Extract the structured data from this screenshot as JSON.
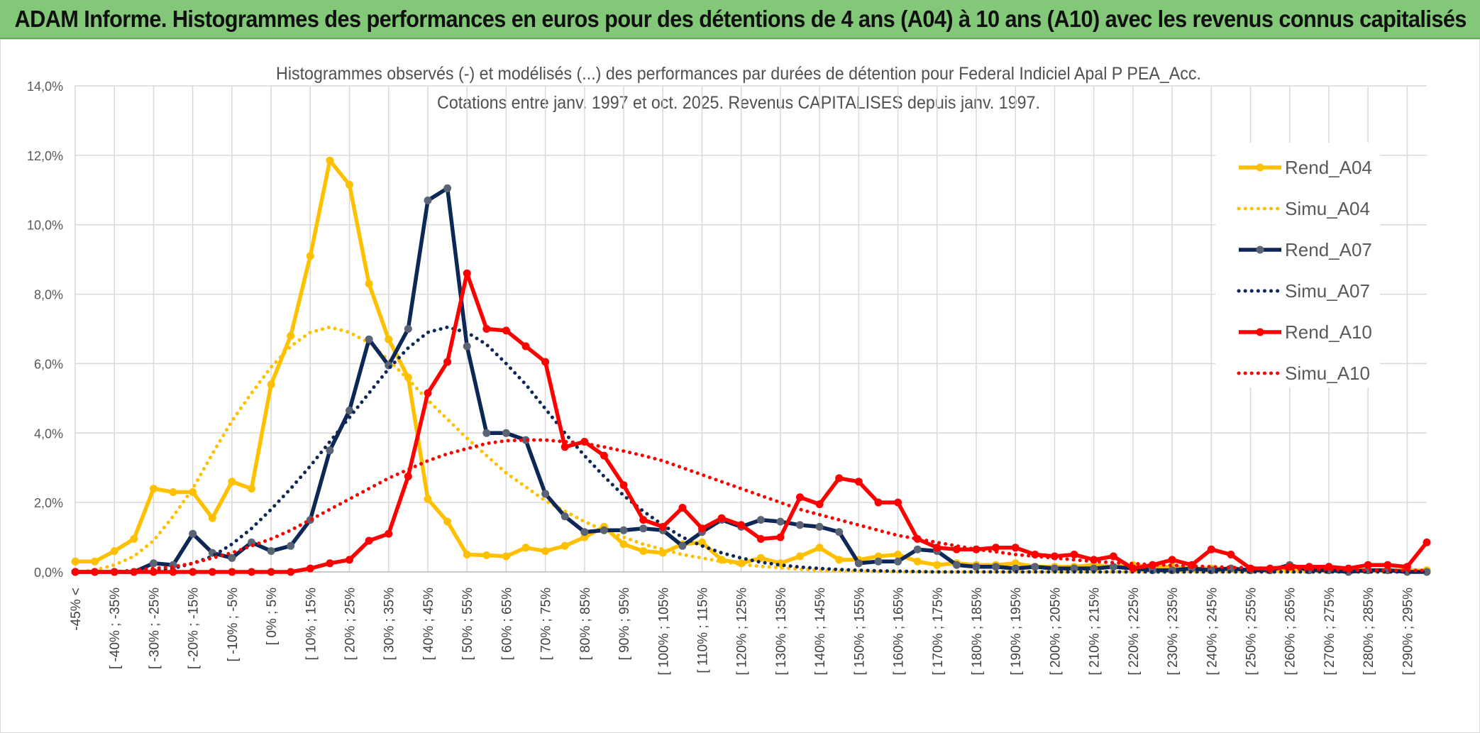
{
  "header": {
    "title": "ADAM Informe. Histogrammes des performances en euros pour des détentions de 4 ans (A04) à 10 ans (A10) avec les revenus connus capitalisés"
  },
  "chart_data": {
    "type": "line",
    "title": "Histogrammes observés (-) et modélisés (...) des performances par durées de détention pour Federal Indiciel Apal P PEA_Acc.",
    "subtitle": "Cotations entre janv. 1997 et oct. 2025. Revenus CAPITALISES depuis janv. 1997.",
    "xlabel": "",
    "ylabel": "",
    "ylim": [
      0,
      14
    ],
    "yticks": [
      "0,0%",
      "2,0%",
      "4,0%",
      "6,0%",
      "8,0%",
      "10,0%",
      "12,0%",
      "14,0%"
    ],
    "grid": true,
    "legend_position": "right",
    "categories": [
      "-45% <",
      "[ -45% ; -40%",
      "[ -40% ; -35%",
      "[ -35% ; -30%",
      "[ -30% ; -25%",
      "[ -25% ; -20%",
      "[ -20% ; -15%",
      "[ -15% ; -10%",
      "[ -10% ; -5%",
      "[ -5% ; 0%",
      "[ 0% ; 5%",
      "[ 5% ; 10%",
      "[ 10% ; 15%",
      "[ 15% ; 20%",
      "[ 20% ; 25%",
      "[ 25% ; 30%",
      "[ 30% ; 35%",
      "[ 35% ; 40%",
      "[ 40% ; 45%",
      "[ 45% ; 50%",
      "[ 50% ; 55%",
      "[ 55% ; 60%",
      "[ 60% ; 65%",
      "[ 65% ; 70%",
      "[ 70% ; 75%",
      "[ 75% ; 80%",
      "[ 80% ; 85%",
      "[ 85% ; 90%",
      "[ 90% ; 95%",
      "[ 95% ; 100%",
      "[ 100% ; 105%",
      "[ 105% ; 110%",
      "[ 110% ; 115%",
      "[ 115% ; 120%",
      "[ 120% ; 125%",
      "[ 125% ; 130%",
      "[ 130% ; 135%",
      "[ 135% ; 140%",
      "[ 140% ; 145%",
      "[ 145% ; 150%",
      "[ 150% ; 155%",
      "[ 155% ; 160%",
      "[ 160% ; 165%",
      "[ 165% ; 170%",
      "[ 170% ; 175%",
      "[ 175% ; 180%",
      "[ 180% ; 185%",
      "[ 185% ; 190%",
      "[ 190% ; 195%",
      "[ 195% ; 200%",
      "[ 200% ; 205%",
      "[ 205% ; 210%",
      "[ 210% ; 215%",
      "[ 215% ; 220%",
      "[ 220% ; 225%",
      "[ 225% ; 230%",
      "[ 230% ; 235%",
      "[ 235% ; 240%",
      "[ 240% ; 245%",
      "[ 245% ; 250%",
      "[ 250% ; 255%",
      "[ 255% ; 260%",
      "[ 260% ; 265%",
      "[ 265% ; 270%",
      "[ 270% ; 275%",
      "[ 275% ; 280%",
      "[ 280% ; 285%",
      "[ 285% ; 290%",
      "[ 290% ; 295%",
      "[ 295% ; 300%"
    ],
    "visible_category_labels": [
      "-45% <",
      "[ -40% ; -35%",
      "[ -30% ; -25%",
      "[ -20% ; -15%",
      "[ -10% ; -5%",
      "[ 0% ; 5%",
      "[ 10% ; 15%",
      "[ 20% ; 25%",
      "[ 30% ; 35%",
      "[ 40% ; 45%",
      "[ 50% ; 55%",
      "[ 60% ; 65%",
      "[ 70% ; 75%",
      "[ 80% ; 85%",
      "[ 90% ; 95%",
      "[ 100% ; 105%",
      "[ 110% ; 115%",
      "[ 120% ; 125%",
      "[ 130% ; 135%",
      "[ 140% ; 145%",
      "[ 150% ; 155%",
      "[ 160% ; 165%",
      "[ 170% ; 175%",
      "[ 180% ; 185%",
      "[ 190% ; 195%",
      "[ 200% ; 205%",
      "[ 210% ; 215%",
      "[ 220% ; 225%",
      "[ 230% ; 235%",
      "[ 240% ; 245%",
      "[ 250% ; 255%",
      "[ 260% ; 265%",
      "[ 270% ; 275%",
      "[ 280% ; 285%",
      "[ 290% ; 295%"
    ],
    "series": [
      {
        "name": "Rend_A04",
        "style": "solid",
        "markers": true,
        "color": "#ffc000",
        "values": [
          0.3,
          0.3,
          0.6,
          0.95,
          2.4,
          2.3,
          2.3,
          1.55,
          2.6,
          2.4,
          5.4,
          6.8,
          9.1,
          11.85,
          11.15,
          8.3,
          6.7,
          5.6,
          2.1,
          1.45,
          0.5,
          0.48,
          0.45,
          0.7,
          0.6,
          0.75,
          1.0,
          1.3,
          0.8,
          0.6,
          0.55,
          0.8,
          0.85,
          0.35,
          0.25,
          0.4,
          0.25,
          0.45,
          0.7,
          0.35,
          0.35,
          0.45,
          0.5,
          0.3,
          0.2,
          0.25,
          0.2,
          0.2,
          0.25,
          0.15,
          0.15,
          0.15,
          0.2,
          0.15,
          0.2,
          0.15,
          0.15,
          0.1,
          0.1,
          0.1,
          0.05,
          0.05,
          0.1,
          0.05,
          0.05,
          0.05,
          0.05,
          0.05,
          0.05,
          0.05
        ]
      },
      {
        "name": "Simu_A04",
        "style": "dotted",
        "markers": false,
        "color": "#ffc000",
        "values": [
          0.0,
          0.05,
          0.2,
          0.45,
          0.9,
          1.6,
          2.4,
          3.4,
          4.35,
          5.15,
          5.9,
          6.5,
          6.9,
          7.05,
          6.9,
          6.6,
          6.1,
          5.55,
          4.95,
          4.4,
          3.85,
          3.35,
          2.85,
          2.45,
          2.05,
          1.75,
          1.45,
          1.2,
          1.0,
          0.8,
          0.65,
          0.5,
          0.4,
          0.3,
          0.22,
          0.16,
          0.12,
          0.08,
          0.05,
          0.03,
          0.02,
          0.01,
          0.0,
          0.0,
          0.0,
          0.0,
          0.0,
          0.0,
          0.0,
          0.0,
          0.0,
          0.0,
          0.0,
          0.0,
          0.0,
          0.0,
          0.0,
          0.0,
          0.0,
          0.0,
          0.0,
          0.0,
          0.0,
          0.0,
          0.0,
          0.0,
          0.0,
          0.0,
          0.0,
          0.0
        ]
      },
      {
        "name": "Rend_A07",
        "style": "solid",
        "markers": true,
        "color": "#0d2857",
        "values": [
          0.0,
          0.0,
          0.0,
          0.0,
          0.25,
          0.2,
          1.1,
          0.55,
          0.4,
          0.85,
          0.6,
          0.75,
          1.5,
          3.5,
          4.65,
          6.7,
          5.95,
          7.0,
          10.7,
          11.05,
          6.5,
          4.0,
          4.0,
          3.8,
          2.25,
          1.6,
          1.15,
          1.2,
          1.2,
          1.25,
          1.2,
          0.75,
          1.15,
          1.5,
          1.3,
          1.5,
          1.45,
          1.35,
          1.3,
          1.15,
          0.25,
          0.3,
          0.3,
          0.65,
          0.6,
          0.2,
          0.15,
          0.15,
          0.1,
          0.15,
          0.1,
          0.1,
          0.1,
          0.15,
          0.1,
          0.05,
          0.05,
          0.1,
          0.05,
          0.1,
          0.05,
          0.05,
          0.2,
          0.05,
          0.05,
          0.0,
          0.05,
          0.05,
          0.0,
          0.0
        ]
      },
      {
        "name": "Simu_A07",
        "style": "dotted",
        "markers": false,
        "color": "#0d2857",
        "values": [
          0.0,
          0.0,
          0.0,
          0.0,
          0.05,
          0.1,
          0.25,
          0.45,
          0.8,
          1.25,
          1.8,
          2.4,
          3.05,
          3.75,
          4.45,
          5.15,
          5.85,
          6.45,
          6.9,
          7.05,
          6.9,
          6.55,
          6.0,
          5.4,
          4.7,
          4.0,
          3.35,
          2.75,
          2.2,
          1.75,
          1.35,
          1.0,
          0.75,
          0.55,
          0.4,
          0.28,
          0.2,
          0.14,
          0.1,
          0.07,
          0.05,
          0.03,
          0.02,
          0.01,
          0.0,
          0.0,
          0.0,
          0.0,
          0.0,
          0.0,
          0.0,
          0.0,
          0.0,
          0.0,
          0.0,
          0.0,
          0.0,
          0.0,
          0.0,
          0.0,
          0.0,
          0.0,
          0.0,
          0.0,
          0.0,
          0.0,
          0.0,
          0.0,
          0.0,
          0.0
        ]
      },
      {
        "name": "Rend_A10",
        "style": "solid",
        "markers": true,
        "color": "#ff0000",
        "values": [
          0.0,
          0.0,
          0.0,
          0.0,
          0.0,
          0.0,
          0.0,
          0.0,
          0.0,
          0.0,
          0.0,
          0.0,
          0.1,
          0.25,
          0.35,
          0.9,
          1.1,
          2.75,
          5.15,
          6.05,
          8.6,
          7.0,
          6.95,
          6.5,
          6.05,
          3.6,
          3.75,
          3.35,
          2.5,
          1.5,
          1.3,
          1.85,
          1.25,
          1.55,
          1.35,
          0.95,
          1.0,
          2.15,
          1.95,
          2.7,
          2.6,
          2.0,
          2.0,
          0.95,
          0.7,
          0.65,
          0.65,
          0.7,
          0.7,
          0.5,
          0.45,
          0.5,
          0.35,
          0.45,
          0.1,
          0.2,
          0.35,
          0.2,
          0.65,
          0.5,
          0.1,
          0.1,
          0.15,
          0.15,
          0.15,
          0.1,
          0.2,
          0.2,
          0.15,
          0.85
        ]
      },
      {
        "name": "Simu_A10",
        "style": "dotted",
        "markers": false,
        "color": "#ff0000",
        "values": [
          0.0,
          0.0,
          0.0,
          0.05,
          0.1,
          0.15,
          0.25,
          0.4,
          0.55,
          0.75,
          0.95,
          1.2,
          1.5,
          1.8,
          2.1,
          2.4,
          2.7,
          2.95,
          3.2,
          3.4,
          3.55,
          3.7,
          3.78,
          3.8,
          3.8,
          3.75,
          3.7,
          3.6,
          3.48,
          3.35,
          3.2,
          3.0,
          2.8,
          2.6,
          2.4,
          2.2,
          2.0,
          1.8,
          1.65,
          1.5,
          1.35,
          1.2,
          1.05,
          0.95,
          0.85,
          0.75,
          0.65,
          0.58,
          0.5,
          0.45,
          0.4,
          0.35,
          0.3,
          0.27,
          0.24,
          0.21,
          0.19,
          0.17,
          0.15,
          0.13,
          0.12,
          0.1,
          0.09,
          0.08,
          0.07,
          0.06,
          0.05,
          0.05,
          0.04,
          0.04
        ]
      }
    ]
  }
}
